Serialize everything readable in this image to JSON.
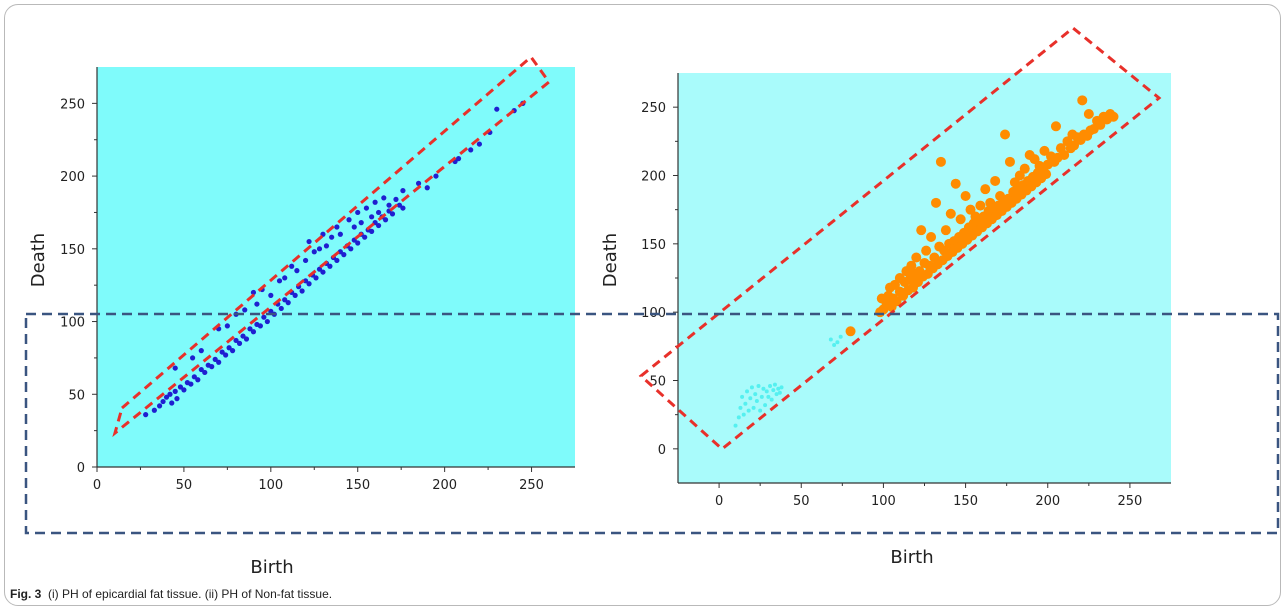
{
  "caption": {
    "label": "Fig. 3",
    "text": "(i) PH of epicardial fat tissue. (ii) PH of Non-fat tissue."
  },
  "colors": {
    "plot_background": "#7ffbfb",
    "plot_background_2": "#a9fbfb",
    "left_points": "#1f1fd0",
    "right_points": "#ff8c00",
    "right_low_points": "#55f0f0",
    "red_box": "#e8302a",
    "blue_box": "#3a5580"
  },
  "chart_data": [
    {
      "type": "scatter",
      "title": "",
      "xlabel": "Birth",
      "ylabel": "Death",
      "xlim": [
        0,
        275
      ],
      "ylim": [
        0,
        275
      ],
      "xticks": [
        0,
        50,
        100,
        150,
        200,
        250
      ],
      "yticks": [
        0,
        50,
        100,
        150,
        200,
        250
      ],
      "grid": false,
      "series": [
        {
          "color": "#1f1fd0",
          "points": [
            [
              28,
              36
            ],
            [
              33,
              39
            ],
            [
              36,
              42
            ],
            [
              38,
              45
            ],
            [
              40,
              48
            ],
            [
              42,
              50
            ],
            [
              43,
              44
            ],
            [
              45,
              52
            ],
            [
              46,
              47
            ],
            [
              48,
              55
            ],
            [
              50,
              53
            ],
            [
              52,
              58
            ],
            [
              54,
              57
            ],
            [
              56,
              62
            ],
            [
              58,
              60
            ],
            [
              60,
              67
            ],
            [
              62,
              65
            ],
            [
              64,
              70
            ],
            [
              66,
              69
            ],
            [
              68,
              74
            ],
            [
              70,
              72
            ],
            [
              72,
              79
            ],
            [
              74,
              77
            ],
            [
              76,
              82
            ],
            [
              78,
              80
            ],
            [
              80,
              87
            ],
            [
              82,
              85
            ],
            [
              84,
              90
            ],
            [
              86,
              88
            ],
            [
              88,
              95
            ],
            [
              90,
              93
            ],
            [
              92,
              98
            ],
            [
              94,
              97
            ],
            [
              96,
              103
            ],
            [
              98,
              100
            ],
            [
              100,
              107
            ],
            [
              102,
              105
            ],
            [
              104,
              112
            ],
            [
              106,
              109
            ],
            [
              108,
              115
            ],
            [
              110,
              113
            ],
            [
              112,
              120
            ],
            [
              114,
              118
            ],
            [
              116,
              124
            ],
            [
              118,
              121
            ],
            [
              120,
              128
            ],
            [
              122,
              126
            ],
            [
              124,
              132
            ],
            [
              126,
              130
            ],
            [
              128,
              136
            ],
            [
              130,
              134
            ],
            [
              132,
              140
            ],
            [
              134,
              138
            ],
            [
              136,
              144
            ],
            [
              138,
              142
            ],
            [
              140,
              148
            ],
            [
              142,
              146
            ],
            [
              144,
              152
            ],
            [
              146,
              150
            ],
            [
              148,
              156
            ],
            [
              150,
              154
            ],
            [
              152,
              160
            ],
            [
              154,
              158
            ],
            [
              156,
              163
            ],
            [
              158,
              162
            ],
            [
              160,
              168
            ],
            [
              162,
              166
            ],
            [
              164,
              172
            ],
            [
              166,
              170
            ],
            [
              168,
              176
            ],
            [
              170,
              174
            ],
            [
              174,
              180
            ],
            [
              176,
              178
            ],
            [
              45,
              68
            ],
            [
              55,
              75
            ],
            [
              60,
              80
            ],
            [
              70,
              95
            ],
            [
              75,
              97
            ],
            [
              80,
              105
            ],
            [
              85,
              108
            ],
            [
              90,
              120
            ],
            [
              92,
              112
            ],
            [
              95,
              122
            ],
            [
              100,
              118
            ],
            [
              105,
              128
            ],
            [
              108,
              130
            ],
            [
              112,
              138
            ],
            [
              115,
              135
            ],
            [
              120,
              142
            ],
            [
              122,
              155
            ],
            [
              125,
              148
            ],
            [
              128,
              150
            ],
            [
              130,
              160
            ],
            [
              132,
              152
            ],
            [
              135,
              158
            ],
            [
              138,
              165
            ],
            [
              140,
              160
            ],
            [
              145,
              170
            ],
            [
              148,
              165
            ],
            [
              150,
              175
            ],
            [
              152,
              168
            ],
            [
              155,
              178
            ],
            [
              158,
              172
            ],
            [
              160,
              182
            ],
            [
              162,
              175
            ],
            [
              165,
              185
            ],
            [
              168,
              180
            ],
            [
              172,
              184
            ],
            [
              176,
              190
            ],
            [
              185,
              195
            ],
            [
              190,
              192
            ],
            [
              195,
              200
            ],
            [
              206,
              210
            ],
            [
              208,
              212
            ],
            [
              215,
              218
            ],
            [
              220,
              222
            ],
            [
              226,
              230
            ],
            [
              230,
              246
            ],
            [
              240,
              245
            ],
            [
              245,
              250
            ]
          ]
        }
      ]
    },
    {
      "type": "scatter",
      "title": "",
      "xlabel": "Birth",
      "ylabel": "Death",
      "xlim": [
        -25,
        275
      ],
      "ylim": [
        -25,
        275
      ],
      "xticks": [
        0,
        50,
        100,
        150,
        200,
        250
      ],
      "yticks": [
        0,
        50,
        100,
        150,
        200,
        250
      ],
      "grid": false,
      "series": [
        {
          "color": "#ff8c00",
          "points": [
            [
              80,
              86
            ],
            [
              98,
              100
            ],
            [
              99,
              110
            ],
            [
              100,
              102
            ],
            [
              102,
              106
            ],
            [
              103,
              112
            ],
            [
              104,
              118
            ],
            [
              105,
              104
            ],
            [
              106,
              110
            ],
            [
              107,
              120
            ],
            [
              108,
              108
            ],
            [
              110,
              115
            ],
            [
              110,
              125
            ],
            [
              112,
              112
            ],
            [
              113,
              122
            ],
            [
              114,
              130
            ],
            [
              115,
              116
            ],
            [
              116,
              124
            ],
            [
              117,
              134
            ],
            [
              118,
              118
            ],
            [
              119,
              128
            ],
            [
              120,
              140
            ],
            [
              121,
              122
            ],
            [
              122,
              130
            ],
            [
              123,
              160
            ],
            [
              124,
              126
            ],
            [
              125,
              136
            ],
            [
              126,
              145
            ],
            [
              127,
              128
            ],
            [
              128,
              134
            ],
            [
              129,
              155
            ],
            [
              130,
              132
            ],
            [
              131,
              140
            ],
            [
              132,
              180
            ],
            [
              133,
              135
            ],
            [
              134,
              148
            ],
            [
              135,
              210
            ],
            [
              136,
              138
            ],
            [
              137,
              145
            ],
            [
              138,
              160
            ],
            [
              139,
              141
            ],
            [
              140,
              150
            ],
            [
              141,
              172
            ],
            [
              142,
              144
            ],
            [
              143,
              152
            ],
            [
              144,
              194
            ],
            [
              145,
              147
            ],
            [
              146,
              155
            ],
            [
              147,
              168
            ],
            [
              148,
              150
            ],
            [
              149,
              158
            ],
            [
              150,
              185
            ],
            [
              151,
              153
            ],
            [
              152,
              162
            ],
            [
              153,
              175
            ],
            [
              154,
              156
            ],
            [
              155,
              165
            ],
            [
              156,
              170
            ],
            [
              157,
              159
            ],
            [
              158,
              166
            ],
            [
              159,
              178
            ],
            [
              160,
              162
            ],
            [
              161,
              170
            ],
            [
              162,
              190
            ],
            [
              163,
              165
            ],
            [
              164,
              174
            ],
            [
              165,
              180
            ],
            [
              166,
              168
            ],
            [
              167,
              176
            ],
            [
              168,
              196
            ],
            [
              169,
              171
            ],
            [
              170,
              178
            ],
            [
              171,
              185
            ],
            [
              172,
              174
            ],
            [
              173,
              180
            ],
            [
              174,
              230
            ],
            [
              175,
              177
            ],
            [
              176,
              183
            ],
            [
              177,
              210
            ],
            [
              178,
              180
            ],
            [
              179,
              188
            ],
            [
              180,
              195
            ],
            [
              181,
              183
            ],
            [
              182,
              190
            ],
            [
              183,
              200
            ],
            [
              184,
              186
            ],
            [
              185,
              193
            ],
            [
              186,
              205
            ],
            [
              187,
              189
            ],
            [
              188,
              196
            ],
            [
              189,
              215
            ],
            [
              190,
              192
            ],
            [
              191,
              199
            ],
            [
              192,
              212
            ],
            [
              193,
              195
            ],
            [
              194,
              202
            ],
            [
              195,
              207
            ],
            [
              196,
              198
            ],
            [
              197,
              205
            ],
            [
              198,
              218
            ],
            [
              199,
              201
            ],
            [
              200,
              208
            ],
            [
              202,
              214
            ],
            [
              204,
              210
            ],
            [
              205,
              236
            ],
            [
              206,
              213
            ],
            [
              208,
              220
            ],
            [
              210,
              215
            ],
            [
              212,
              225
            ],
            [
              214,
              220
            ],
            [
              215,
              230
            ],
            [
              216,
              222
            ],
            [
              218,
              228
            ],
            [
              220,
              226
            ],
            [
              221,
              255
            ],
            [
              222,
              230
            ],
            [
              224,
              229
            ],
            [
              225,
              245
            ],
            [
              226,
              233
            ],
            [
              228,
              234
            ],
            [
              230,
              240
            ],
            [
              232,
              237
            ],
            [
              234,
              243
            ],
            [
              236,
              241
            ],
            [
              238,
              245
            ],
            [
              240,
              243
            ]
          ]
        },
        {
          "color": "#55f0f0",
          "points": [
            [
              10,
              17
            ],
            [
              12,
              23
            ],
            [
              13,
              30
            ],
            [
              14,
              38
            ],
            [
              15,
              25
            ],
            [
              16,
              33
            ],
            [
              17,
              42
            ],
            [
              18,
              28
            ],
            [
              19,
              37
            ],
            [
              20,
              45
            ],
            [
              21,
              30
            ],
            [
              22,
              40
            ],
            [
              23,
              35
            ],
            [
              24,
              46
            ],
            [
              25,
              28
            ],
            [
              26,
              38
            ],
            [
              27,
              44
            ],
            [
              28,
              32
            ],
            [
              29,
              42
            ],
            [
              30,
              38
            ],
            [
              31,
              46
            ],
            [
              32,
              36
            ],
            [
              33,
              43
            ],
            [
              34,
              47
            ],
            [
              35,
              40
            ],
            [
              36,
              44
            ],
            [
              37,
              41
            ],
            [
              38,
              45
            ],
            [
              68,
              80
            ],
            [
              70,
              76
            ],
            [
              72,
              78
            ],
            [
              74,
              82
            ]
          ]
        }
      ]
    }
  ]
}
